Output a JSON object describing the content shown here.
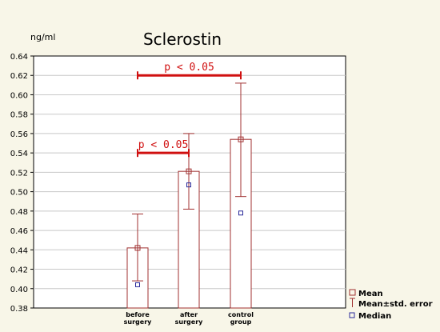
{
  "chart_data": {
    "type": "bar",
    "title": "Sclerostin",
    "ylabel": "ng/ml",
    "xlabel": "",
    "ylim": [
      0.38,
      0.64
    ],
    "yticks": [
      "0.38",
      "0.40",
      "0.42",
      "0.44",
      "0.46",
      "0.48",
      "0.50",
      "0.52",
      "0.54",
      "0.56",
      "0.58",
      "0.60",
      "0.62",
      "0.64"
    ],
    "grid": true,
    "categories": [
      {
        "line1": "before",
        "line2": "surgery"
      },
      {
        "line1": "after",
        "line2": "surgery"
      },
      {
        "line1": "control",
        "line2": "group"
      }
    ],
    "series": [
      {
        "name": "Mean",
        "values": [
          0.442,
          0.521,
          0.554
        ]
      },
      {
        "name": "Mean±std. error",
        "low": [
          0.408,
          0.482,
          0.495
        ],
        "high": [
          0.477,
          0.56,
          0.612
        ]
      },
      {
        "name": "Median",
        "values": [
          0.404,
          0.507,
          0.478
        ]
      }
    ],
    "annotations": [
      {
        "text": "p < 0.05",
        "from": 0,
        "to": 1,
        "y": 0.54
      },
      {
        "text": "p < 0.05",
        "from": 0,
        "to": 2,
        "y": 0.62
      }
    ],
    "legend_position": "bottom-right",
    "colors": {
      "bar": "#a03030",
      "bar_fill": "#ffffff",
      "median": "#2a2a9a",
      "annotation": "#d01010",
      "grid": "#c8c8c8",
      "plot_bg": "#ffffff",
      "page_bg": "#f8f6e8"
    }
  }
}
